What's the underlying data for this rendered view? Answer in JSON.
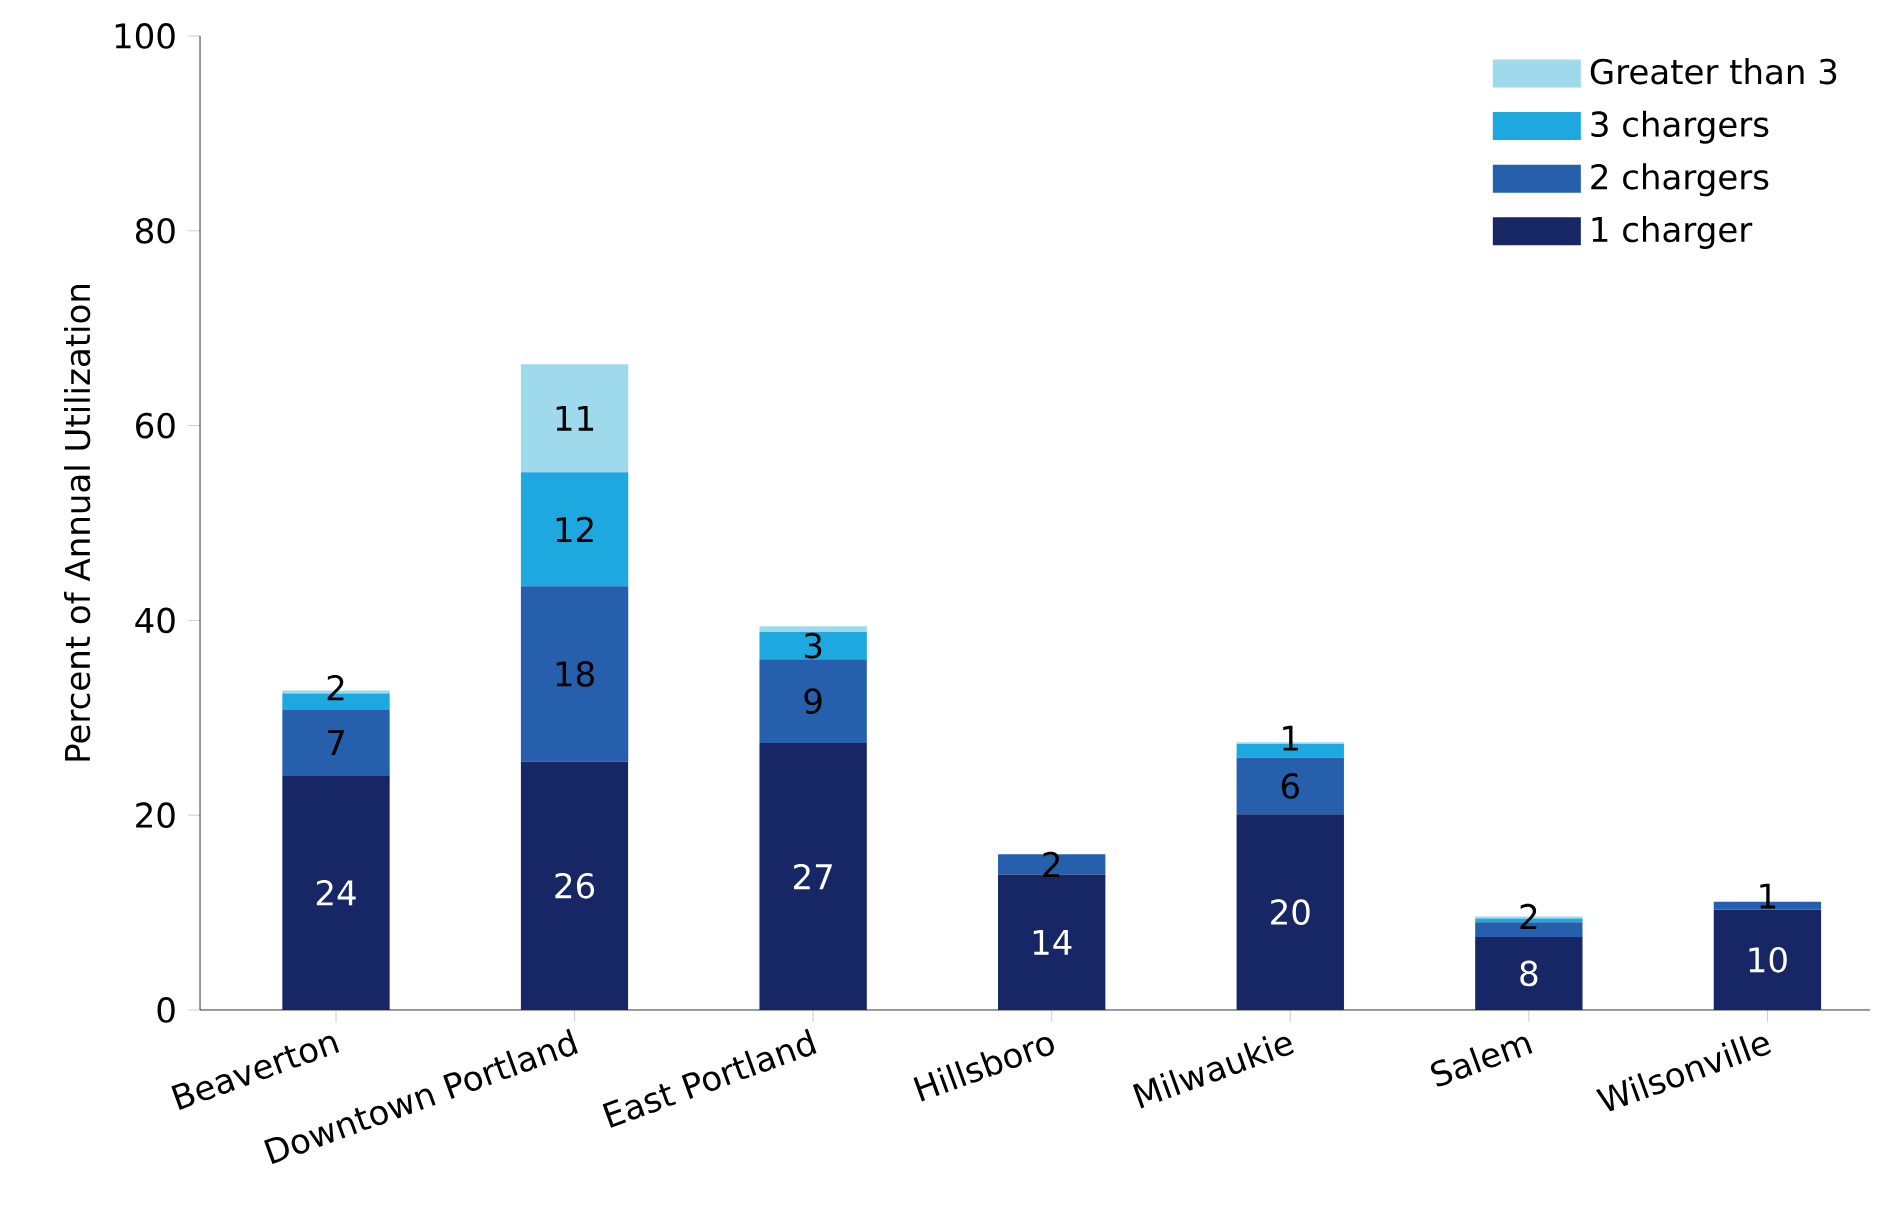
{
  "chart_data": {
    "type": "bar",
    "stacked": true,
    "ylabel": "Percent of Annual Utilization",
    "categories": [
      "Beaverton",
      "Downtown Portland",
      "East Portland",
      "Hillsboro",
      "Milwaukie",
      "Salem",
      "Wilsonville"
    ],
    "series": [
      {
        "name": "1 charger",
        "color": "#172765",
        "values": [
          24.1,
          25.5,
          27.4,
          13.9,
          20.1,
          7.5,
          10.3
        ],
        "value_labels": [
          "24",
          "26",
          "27",
          "14",
          "20",
          "8",
          "10"
        ]
      },
      {
        "name": "2 chargers",
        "color": "#2660ad",
        "values": [
          6.7,
          18.0,
          8.6,
          2.1,
          5.8,
          1.5,
          0.8
        ],
        "value_labels": [
          "7",
          "18",
          "9",
          "2",
          "6",
          "2",
          "1"
        ]
      },
      {
        "name": "3 chargers",
        "color": "#1ea8e0",
        "values": [
          1.7,
          11.7,
          2.8,
          null,
          1.4,
          0.4,
          null
        ],
        "value_labels": [
          "2",
          "12",
          "3",
          null,
          "1",
          null,
          null
        ]
      },
      {
        "name": "Greater than 3",
        "color": "#9ed9ec",
        "values": [
          0.3,
          11.1,
          0.6,
          null,
          0.2,
          0.2,
          null
        ],
        "value_labels": [
          null,
          "11",
          null,
          null,
          null,
          null,
          null
        ]
      }
    ],
    "ylim": [
      0,
      100
    ],
    "yticks": [
      0,
      20,
      40,
      60,
      80,
      100
    ],
    "legend": "top right"
  }
}
